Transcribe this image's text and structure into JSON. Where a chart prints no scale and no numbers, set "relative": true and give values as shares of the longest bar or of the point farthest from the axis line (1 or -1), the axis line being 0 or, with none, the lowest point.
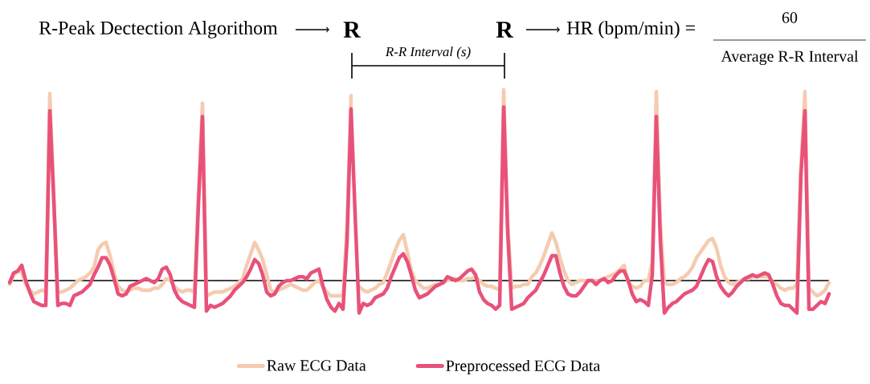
{
  "chart_data": {
    "type": "line",
    "relative": true,
    "annotations": [
      "R-Peak Dectection Algorithom",
      "R",
      "R",
      "R-R Interval (s)",
      "HR (bpm/min) =",
      "60",
      "Average R-R Interval"
    ],
    "categories": [
      null,
      null,
      null,
      null,
      null,
      null,
      null,
      null,
      null,
      null,
      null,
      null,
      null,
      null,
      null,
      null,
      null,
      null,
      null,
      null,
      null,
      null,
      null,
      null,
      null,
      null,
      null,
      null,
      null,
      null,
      null,
      null,
      null,
      null,
      null,
      null,
      null,
      null,
      null,
      null,
      null,
      null,
      null,
      null,
      null,
      null,
      null,
      null,
      null,
      null,
      null,
      null,
      null,
      null,
      null,
      null,
      null,
      null,
      null,
      null,
      null,
      null,
      null,
      null,
      null,
      null,
      null,
      null,
      null,
      null,
      null,
      null,
      null,
      null,
      null,
      null,
      null,
      null,
      null,
      null,
      null,
      null,
      null,
      null,
      null,
      null,
      null,
      null,
      null,
      null,
      null,
      null,
      null,
      null,
      null,
      null,
      null,
      null,
      null,
      null,
      null,
      null,
      null,
      null,
      null,
      null,
      null,
      null,
      null,
      null,
      null,
      null,
      null,
      null,
      null,
      null,
      null,
      null,
      null,
      null,
      null,
      null,
      null,
      null,
      null,
      null,
      null,
      null,
      null,
      null,
      null,
      null,
      null,
      null,
      null,
      null,
      null,
      null,
      null,
      null,
      null,
      null,
      null,
      null,
      null,
      null,
      null,
      null,
      null,
      null,
      null,
      null,
      null,
      null,
      null,
      null,
      null,
      null,
      null,
      null,
      null,
      null,
      null,
      null,
      null,
      null,
      null,
      null,
      null,
      null,
      null,
      null,
      null,
      null,
      null,
      null,
      null,
      null,
      null,
      null,
      null,
      null,
      null,
      null,
      null,
      null,
      null,
      null,
      null,
      null,
      null,
      null,
      null,
      null,
      null,
      null,
      null,
      null,
      null,
      null,
      null,
      null,
      null,
      null,
      null
    ],
    "legend": "bottom",
    "marker": "none",
    "line_style": "solid",
    "series": [
      {
        "name": "Raw ECG Data",
        "color": "#f5cbb0",
        "values": [
          -0.02,
          0.03,
          0.05,
          0.04,
          -0.02,
          -0.05,
          -0.07,
          -0.06,
          -0.05,
          -0.06,
          0.98,
          0.42,
          -0.06,
          -0.06,
          -0.05,
          -0.04,
          -0.02,
          0.0,
          0.01,
          0.02,
          0.04,
          0.07,
          0.16,
          0.19,
          0.2,
          0.13,
          0.04,
          -0.03,
          -0.05,
          -0.06,
          -0.05,
          -0.04,
          -0.04,
          -0.05,
          -0.05,
          -0.05,
          -0.04,
          -0.04,
          -0.02,
          0.01,
          0.0,
          -0.03,
          -0.05,
          -0.06,
          -0.05,
          -0.05,
          -0.06,
          0.45,
          0.93,
          -0.08,
          -0.07,
          -0.06,
          -0.06,
          -0.06,
          -0.05,
          -0.04,
          -0.03,
          -0.01,
          0.01,
          0.08,
          0.14,
          0.2,
          0.16,
          0.11,
          0.03,
          -0.05,
          -0.06,
          -0.05,
          -0.04,
          -0.03,
          -0.02,
          -0.03,
          -0.04,
          -0.05,
          -0.05,
          -0.03,
          -0.01,
          0.0,
          -0.03,
          -0.06,
          -0.08,
          -0.08,
          -0.08,
          -0.08,
          0.29,
          0.97,
          null,
          -0.03,
          -0.05,
          -0.06,
          -0.05,
          -0.04,
          -0.02,
          -0.01,
          0.04,
          0.1,
          0.16,
          0.21,
          0.24,
          0.15,
          0.05,
          0.0,
          -0.02,
          -0.04,
          -0.04,
          -0.03,
          -0.02,
          -0.02,
          -0.01,
          0.0,
          0.01,
          0.01,
          0.0,
          0.0,
          0.01,
          0.01,
          0.02,
          0.0,
          -0.02,
          -0.03,
          -0.03,
          -0.04,
          -0.05,
          1.0,
          0.29,
          -0.04,
          -0.03,
          -0.03,
          -0.02,
          -0.02,
          0.02,
          0.04,
          0.08,
          0.13,
          0.19,
          0.25,
          0.2,
          0.12,
          0.05,
          0.0,
          -0.02,
          -0.01,
          0.0,
          0.0,
          0.0,
          0.0,
          0.0,
          0.0,
          0.01,
          0.02,
          0.03,
          0.04,
          0.06,
          0.08,
          -0.01,
          -0.03,
          -0.04,
          -0.03,
          0.0,
          0.0,
          0.1,
          0.99,
          0.29,
          -0.01,
          -0.02,
          -0.02,
          -0.01,
          0.01,
          0.02,
          0.04,
          0.07,
          0.12,
          0.15,
          0.18,
          0.21,
          0.22,
          0.17,
          0.08,
          0.02,
          -0.01,
          -0.02,
          -0.01,
          0.0,
          0.01,
          0.01,
          0.02,
          0.02,
          0.02,
          0.02,
          0.02,
          -0.01,
          -0.02,
          -0.04,
          -0.05,
          -0.04,
          -0.04,
          -0.02,
          0.6,
          0.99,
          -0.04,
          -0.06,
          -0.08,
          -0.07,
          -0.05,
          -0.01
        ]
      },
      {
        "name": "Preprocessed ECG Data",
        "color": "#e8527a",
        "values": [
          -0.01,
          0.04,
          0.05,
          0.08,
          0.0,
          -0.06,
          -0.11,
          -0.12,
          -0.13,
          -0.13,
          0.89,
          0.42,
          -0.13,
          -0.12,
          -0.12,
          -0.13,
          -0.08,
          -0.07,
          -0.06,
          -0.04,
          -0.02,
          0.03,
          0.07,
          0.12,
          0.12,
          0.08,
          0.01,
          -0.07,
          -0.08,
          -0.07,
          -0.03,
          -0.02,
          -0.01,
          0.0,
          0.01,
          0.0,
          -0.01,
          0.01,
          0.06,
          0.07,
          0.03,
          -0.05,
          -0.09,
          -0.11,
          -0.12,
          -0.13,
          -0.14,
          0.4,
          0.86,
          -0.16,
          -0.13,
          -0.14,
          -0.13,
          -0.12,
          -0.1,
          -0.08,
          -0.05,
          -0.03,
          -0.01,
          0.02,
          0.06,
          0.11,
          0.09,
          0.03,
          -0.06,
          -0.08,
          -0.07,
          -0.03,
          -0.01,
          0.0,
          0.0,
          0.01,
          0.02,
          0.02,
          0.01,
          0.04,
          0.05,
          0.06,
          -0.03,
          -0.1,
          -0.14,
          -0.16,
          -0.12,
          -0.15,
          0.21,
          0.9,
          0.35,
          -0.17,
          -0.12,
          -0.13,
          -0.12,
          -0.09,
          -0.08,
          -0.07,
          -0.04,
          0.02,
          0.07,
          0.12,
          0.14,
          0.1,
          0.03,
          -0.05,
          -0.09,
          -0.08,
          -0.07,
          -0.05,
          -0.03,
          -0.02,
          -0.01,
          0.02,
          0.01,
          0.0,
          0.01,
          0.03,
          0.05,
          0.06,
          0.03,
          -0.06,
          -0.1,
          -0.12,
          -0.13,
          -0.15,
          -0.13,
          0.91,
          0.25,
          -0.15,
          -0.14,
          -0.13,
          -0.12,
          -0.09,
          -0.07,
          -0.05,
          -0.01,
          0.03,
          0.08,
          0.13,
          0.13,
          0.04,
          -0.03,
          -0.07,
          -0.08,
          -0.08,
          -0.06,
          -0.03,
          0.0,
          0.0,
          -0.02,
          0.0,
          0.01,
          -0.01,
          0.0,
          0.03,
          0.05,
          0.05,
          0.0,
          -0.07,
          -0.11,
          -0.1,
          -0.11,
          -0.13,
          0.03,
          0.86,
          0.21,
          -0.17,
          -0.14,
          -0.12,
          -0.11,
          -0.09,
          -0.07,
          -0.06,
          -0.05,
          -0.03,
          0.02,
          0.07,
          0.11,
          0.1,
          0.02,
          -0.03,
          -0.06,
          -0.08,
          -0.06,
          -0.03,
          -0.01,
          0.01,
          0.02,
          0.03,
          0.02,
          0.03,
          0.04,
          0.03,
          -0.02,
          -0.08,
          -0.12,
          -0.13,
          -0.13,
          -0.15,
          -0.17,
          0.55,
          0.89,
          -0.15,
          -0.15,
          -0.13,
          -0.11,
          -0.12,
          -0.07
        ]
      }
    ]
  }
}
